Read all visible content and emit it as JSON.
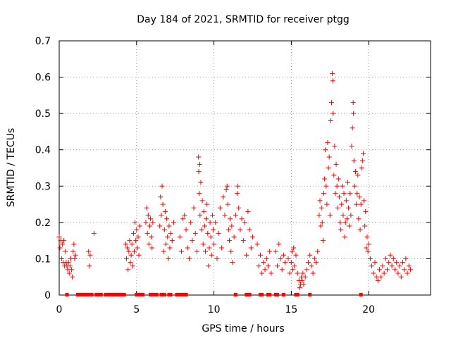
{
  "chart_data": {
    "type": "scatter",
    "title": "Day 184 of 2021, SRMTID for receiver ptgg",
    "xlabel": "GPS time / hours",
    "ylabel": "SRMTID / TECUs",
    "xlim": [
      0,
      24
    ],
    "ylim": [
      0,
      0.7
    ],
    "x_ticks": [
      0,
      5,
      10,
      15,
      20
    ],
    "x_tick_labels": [
      "0",
      "5",
      "10",
      "15",
      "20"
    ],
    "y_ticks": [
      0,
      0.1,
      0.2,
      0.3,
      0.4,
      0.5,
      0.6,
      0.7
    ],
    "y_tick_labels": [
      "0",
      "0.1",
      "0.2",
      "0.3",
      "0.4",
      "0.5",
      "0.6",
      "0.7"
    ],
    "grid": true,
    "marker": "+",
    "color": "#ff0000",
    "series": [
      {
        "name": "SRMTID",
        "points": [
          [
            0.0,
            0.16
          ],
          [
            0.05,
            0.13
          ],
          [
            0.1,
            0.15
          ],
          [
            0.15,
            0.1
          ],
          [
            0.2,
            0.14
          ],
          [
            0.25,
            0.09
          ],
          [
            0.3,
            0.15
          ],
          [
            0.35,
            0.08
          ],
          [
            0.4,
            0.12
          ],
          [
            0.45,
            0.09
          ],
          [
            0.5,
            0.08
          ],
          [
            0.55,
            0.07
          ],
          [
            0.6,
            0.09
          ],
          [
            0.65,
            0.06
          ],
          [
            0.7,
            0.08
          ],
          [
            0.75,
            0.1
          ],
          [
            0.8,
            0.07
          ],
          [
            0.85,
            0.05
          ],
          [
            0.9,
            0.12
          ],
          [
            0.95,
            0.14
          ],
          [
            1.0,
            0.1
          ],
          [
            1.05,
            0.11
          ],
          [
            1.9,
            0.12
          ],
          [
            1.95,
            0.08
          ],
          [
            2.0,
            0.11
          ],
          [
            2.25,
            0.17
          ],
          [
            4.3,
            0.14
          ],
          [
            4.35,
            0.1
          ],
          [
            4.4,
            0.13
          ],
          [
            4.45,
            0.07
          ],
          [
            4.5,
            0.12
          ],
          [
            4.55,
            0.15
          ],
          [
            4.6,
            0.09
          ],
          [
            4.65,
            0.11
          ],
          [
            4.7,
            0.14
          ],
          [
            4.75,
            0.08
          ],
          [
            4.8,
            0.17
          ],
          [
            4.85,
            0.12
          ],
          [
            4.9,
            0.2
          ],
          [
            4.95,
            0.15
          ],
          [
            5.0,
            0.18
          ],
          [
            5.05,
            0.13
          ],
          [
            5.1,
            0.16
          ],
          [
            5.15,
            0.11
          ],
          [
            5.2,
            0.19
          ],
          [
            5.6,
            0.2
          ],
          [
            5.65,
            0.24
          ],
          [
            5.7,
            0.17
          ],
          [
            5.75,
            0.22
          ],
          [
            5.8,
            0.14
          ],
          [
            5.85,
            0.19
          ],
          [
            5.9,
            0.21
          ],
          [
            5.95,
            0.16
          ],
          [
            6.0,
            0.13
          ],
          [
            6.05,
            0.2
          ],
          [
            6.5,
            0.19
          ],
          [
            6.55,
            0.27
          ],
          [
            6.6,
            0.22
          ],
          [
            6.65,
            0.3
          ],
          [
            6.7,
            0.25
          ],
          [
            6.75,
            0.12
          ],
          [
            6.8,
            0.18
          ],
          [
            6.85,
            0.23
          ],
          [
            6.9,
            0.14
          ],
          [
            6.95,
            0.21
          ],
          [
            7.0,
            0.16
          ],
          [
            7.05,
            0.1
          ],
          [
            7.1,
            0.19
          ],
          [
            7.15,
            0.13
          ],
          [
            7.2,
            0.17
          ],
          [
            7.3,
            0.15
          ],
          [
            7.4,
            0.2
          ],
          [
            7.8,
            0.16
          ],
          [
            7.9,
            0.12
          ],
          [
            8.0,
            0.21
          ],
          [
            8.1,
            0.22
          ],
          [
            8.2,
            0.18
          ],
          [
            8.3,
            0.13
          ],
          [
            8.4,
            0.1
          ],
          [
            8.5,
            0.2
          ],
          [
            8.6,
            0.15
          ],
          [
            8.7,
            0.24
          ],
          [
            8.8,
            0.17
          ],
          [
            8.9,
            0.12
          ],
          [
            9.0,
            0.38
          ],
          [
            9.02,
            0.34
          ],
          [
            9.05,
            0.28
          ],
          [
            9.08,
            0.36
          ],
          [
            9.1,
            0.22
          ],
          [
            9.15,
            0.31
          ],
          [
            9.2,
            0.18
          ],
          [
            9.25,
            0.26
          ],
          [
            9.3,
            0.14
          ],
          [
            9.35,
            0.23
          ],
          [
            9.4,
            0.19
          ],
          [
            9.45,
            0.12
          ],
          [
            9.5,
            0.21
          ],
          [
            9.55,
            0.25
          ],
          [
            9.6,
            0.17
          ],
          [
            9.65,
            0.08
          ],
          [
            9.7,
            0.13
          ],
          [
            9.75,
            0.2
          ],
          [
            9.8,
            0.16
          ],
          [
            9.85,
            0.11
          ],
          [
            9.9,
            0.22
          ],
          [
            9.95,
            0.18
          ],
          [
            10.0,
            0.14
          ],
          [
            10.1,
            0.2
          ],
          [
            10.2,
            0.1
          ],
          [
            10.3,
            0.17
          ],
          [
            10.4,
            0.24
          ],
          [
            10.5,
            0.13
          ],
          [
            10.6,
            0.27
          ],
          [
            10.7,
            0.22
          ],
          [
            10.8,
            0.29
          ],
          [
            10.85,
            0.3
          ],
          [
            10.9,
            0.25
          ],
          [
            10.95,
            0.18
          ],
          [
            11.0,
            0.15
          ],
          [
            11.05,
            0.21
          ],
          [
            11.1,
            0.12
          ],
          [
            11.15,
            0.19
          ],
          [
            11.2,
            0.09
          ],
          [
            11.3,
            0.16
          ],
          [
            11.4,
            0.22
          ],
          [
            11.5,
            0.28
          ],
          [
            11.55,
            0.3
          ],
          [
            11.6,
            0.24
          ],
          [
            11.7,
            0.18
          ],
          [
            11.8,
            0.21
          ],
          [
            11.9,
            0.15
          ],
          [
            12.0,
            0.2
          ],
          [
            12.1,
            0.11
          ],
          [
            12.2,
            0.23
          ],
          [
            12.3,
            0.18
          ],
          [
            12.4,
            0.13
          ],
          [
            12.5,
            0.16
          ],
          [
            12.8,
            0.14
          ],
          [
            12.9,
            0.08
          ],
          [
            13.0,
            0.11
          ],
          [
            13.1,
            0.06
          ],
          [
            13.2,
            0.09
          ],
          [
            13.3,
            0.07
          ],
          [
            13.4,
            0.1
          ],
          [
            13.5,
            0.08
          ],
          [
            13.6,
            0.12
          ],
          [
            13.7,
            0.06
          ],
          [
            14.0,
            0.12
          ],
          [
            14.1,
            0.08
          ],
          [
            14.2,
            0.14
          ],
          [
            14.3,
            0.1
          ],
          [
            14.4,
            0.07
          ],
          [
            14.5,
            0.11
          ],
          [
            14.6,
            0.09
          ],
          [
            14.8,
            0.1
          ],
          [
            14.9,
            0.06
          ],
          [
            15.0,
            0.09
          ],
          [
            15.05,
            0.12
          ],
          [
            15.1,
            0.07
          ],
          [
            15.15,
            0.13
          ],
          [
            15.2,
            0.08
          ],
          [
            15.3,
            0.11
          ],
          [
            15.4,
            0.06
          ],
          [
            15.5,
            0.04
          ],
          [
            15.55,
            0.02
          ],
          [
            15.6,
            0.03
          ],
          [
            15.65,
            0.05
          ],
          [
            15.7,
            0.04
          ],
          [
            15.75,
            0.06
          ],
          [
            15.8,
            0.03
          ],
          [
            15.9,
            0.05
          ],
          [
            16.0,
            0.07
          ],
          [
            16.1,
            0.09
          ],
          [
            16.2,
            0.11
          ],
          [
            16.3,
            0.08
          ],
          [
            16.4,
            0.06
          ],
          [
            16.5,
            0.1
          ],
          [
            16.6,
            0.09
          ],
          [
            16.7,
            0.12
          ],
          [
            16.8,
            0.22
          ],
          [
            16.85,
            0.26
          ],
          [
            16.9,
            0.19
          ],
          [
            16.95,
            0.24
          ],
          [
            17.0,
            0.2
          ],
          [
            17.05,
            0.15
          ],
          [
            17.1,
            0.28
          ],
          [
            17.15,
            0.32
          ],
          [
            17.2,
            0.4
          ],
          [
            17.25,
            0.3
          ],
          [
            17.3,
            0.25
          ],
          [
            17.35,
            0.42
          ],
          [
            17.4,
            0.35
          ],
          [
            17.45,
            0.38
          ],
          [
            17.5,
            0.22
          ],
          [
            17.55,
            0.48
          ],
          [
            17.6,
            0.53
          ],
          [
            17.65,
            0.61
          ],
          [
            17.68,
            0.59
          ],
          [
            17.7,
            0.5
          ],
          [
            17.75,
            0.33
          ],
          [
            17.8,
            0.41
          ],
          [
            17.85,
            0.28
          ],
          [
            17.9,
            0.36
          ],
          [
            17.95,
            0.3
          ],
          [
            18.0,
            0.24
          ],
          [
            18.05,
            0.32
          ],
          [
            18.1,
            0.27
          ],
          [
            18.15,
            0.2
          ],
          [
            18.2,
            0.18
          ],
          [
            18.25,
            0.25
          ],
          [
            18.3,
            0.3
          ],
          [
            18.35,
            0.22
          ],
          [
            18.4,
            0.28
          ],
          [
            18.45,
            0.16
          ],
          [
            18.5,
            0.2
          ],
          [
            18.55,
            0.26
          ],
          [
            18.6,
            0.21
          ],
          [
            18.65,
            0.31
          ],
          [
            18.7,
            0.24
          ],
          [
            18.75,
            0.19
          ],
          [
            18.8,
            0.28
          ],
          [
            18.85,
            0.22
          ],
          [
            18.9,
            0.41
          ],
          [
            18.95,
            0.46
          ],
          [
            19.0,
            0.53
          ],
          [
            19.02,
            0.5
          ],
          [
            19.05,
            0.37
          ],
          [
            19.1,
            0.3
          ],
          [
            19.15,
            0.34
          ],
          [
            19.2,
            0.25
          ],
          [
            19.25,
            0.28
          ],
          [
            19.3,
            0.33
          ],
          [
            19.35,
            0.21
          ],
          [
            19.4,
            0.27
          ],
          [
            19.45,
            0.18
          ],
          [
            19.5,
            0.25
          ],
          [
            19.55,
            0.35
          ],
          [
            19.6,
            0.37
          ],
          [
            19.65,
            0.39
          ],
          [
            19.7,
            0.26
          ],
          [
            19.75,
            0.19
          ],
          [
            19.8,
            0.23
          ],
          [
            19.85,
            0.13
          ],
          [
            19.9,
            0.16
          ],
          [
            19.95,
            0.12
          ],
          [
            20.0,
            0.14
          ],
          [
            20.1,
            0.1
          ],
          [
            20.2,
            0.08
          ],
          [
            20.3,
            0.06
          ],
          [
            20.4,
            0.09
          ],
          [
            20.5,
            0.05
          ],
          [
            20.6,
            0.04
          ],
          [
            20.7,
            0.07
          ],
          [
            20.8,
            0.05
          ],
          [
            20.9,
            0.08
          ],
          [
            21.0,
            0.06
          ],
          [
            21.1,
            0.1
          ],
          [
            21.2,
            0.07
          ],
          [
            21.3,
            0.09
          ],
          [
            21.4,
            0.11
          ],
          [
            21.5,
            0.08
          ],
          [
            21.6,
            0.1
          ],
          [
            21.7,
            0.07
          ],
          [
            21.8,
            0.09
          ],
          [
            21.9,
            0.06
          ],
          [
            22.0,
            0.08
          ],
          [
            22.1,
            0.05
          ],
          [
            22.2,
            0.09
          ],
          [
            22.3,
            0.07
          ],
          [
            22.4,
            0.1
          ],
          [
            22.5,
            0.06
          ],
          [
            22.6,
            0.08
          ],
          [
            22.7,
            0.07
          ]
        ]
      }
    ],
    "zero_markers_x": [
      0.5,
      1.2,
      1.3,
      1.4,
      1.5,
      1.6,
      1.7,
      1.8,
      1.9,
      2.0,
      2.1,
      2.4,
      2.5,
      2.6,
      2.7,
      3.0,
      3.1,
      3.2,
      3.4,
      3.5,
      3.6,
      3.7,
      3.8,
      3.9,
      4.0,
      4.1,
      4.2,
      5.0,
      5.1,
      5.2,
      5.3,
      5.4,
      5.9,
      6.0,
      6.1,
      6.2,
      6.3,
      6.6,
      6.7,
      6.8,
      7.1,
      7.2,
      7.6,
      7.7,
      7.8,
      7.9,
      8.0,
      8.1,
      8.2,
      11.4,
      12.1,
      12.2,
      12.3,
      13.0,
      13.1,
      13.5,
      13.6,
      14.0,
      14.1,
      14.5,
      15.3,
      15.4,
      16.2,
      19.5
    ]
  }
}
